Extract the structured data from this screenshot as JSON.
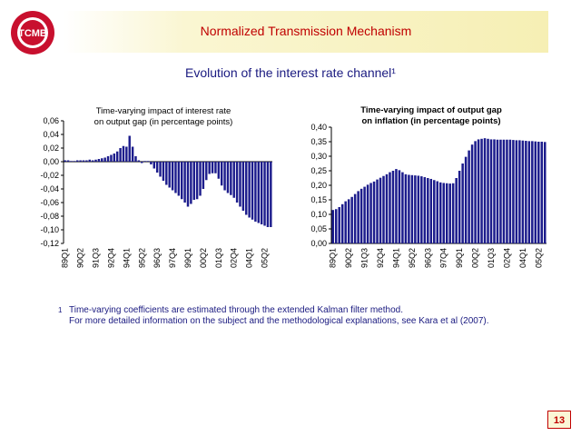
{
  "header": {
    "title": "Normalized Transmission Mechanism",
    "logo_text": "TCMB"
  },
  "subtitle": "Evolution of the interest rate channel¹",
  "footnote": {
    "mark": "1",
    "line1": "Time-varying coefficients are estimated through the extended Kalman filter method.",
    "line2": "For more detailed information on the subject and the methodological explanations, see Kara et al (2007)."
  },
  "page_number": "13",
  "colors": {
    "bar": "#1c1c8c",
    "title": "#c00000",
    "text": "#1a1a80"
  },
  "chart_data": [
    {
      "type": "bar",
      "title_line1": "Time-varying impact of interest rate",
      "title_line2": "on output gap (in percentage points)",
      "ylim": [
        -0.12,
        0.06
      ],
      "yticks": [
        "0,06",
        "0,04",
        "0,02",
        "0,00",
        "-0,02",
        "-0,04",
        "-0,06",
        "-0,08",
        "-0,10",
        "-0,12"
      ],
      "xticks": [
        "89Q1",
        "90Q2",
        "91Q3",
        "92Q4",
        "94Q1",
        "95Q2",
        "96Q3",
        "97Q4",
        "99Q1",
        "00Q2",
        "01Q3",
        "02Q4",
        "04Q1",
        "05Q2"
      ],
      "grid": false,
      "values": [
        0.002,
        0.002,
        0.001,
        0.001,
        0.002,
        0.002,
        0.002,
        0.002,
        0.003,
        0.002,
        0.003,
        0.004,
        0.005,
        0.006,
        0.008,
        0.01,
        0.012,
        0.015,
        0.02,
        0.023,
        0.022,
        0.038,
        0.022,
        0.008,
        0.002,
        -0.002,
        0.001,
        0.001,
        -0.004,
        -0.01,
        -0.016,
        -0.022,
        -0.028,
        -0.034,
        -0.038,
        -0.042,
        -0.046,
        -0.05,
        -0.055,
        -0.06,
        -0.066,
        -0.062,
        -0.056,
        -0.055,
        -0.05,
        -0.04,
        -0.027,
        -0.018,
        -0.017,
        -0.017,
        -0.025,
        -0.035,
        -0.042,
        -0.046,
        -0.049,
        -0.053,
        -0.06,
        -0.066,
        -0.072,
        -0.078,
        -0.082,
        -0.085,
        -0.088,
        -0.09,
        -0.092,
        -0.094,
        -0.096,
        -0.096
      ]
    },
    {
      "type": "bar",
      "title_line1": "Time-varying impact of output gap",
      "title_line2": "on inflation (in percentage points)",
      "ylim": [
        0.0,
        0.4
      ],
      "yticks": [
        "0,40",
        "0,35",
        "0,30",
        "0,25",
        "0,20",
        "0,15",
        "0,10",
        "0,05",
        "0,00"
      ],
      "xticks": [
        "89Q1",
        "90Q2",
        "91Q3",
        "92Q4",
        "94Q1",
        "95Q2",
        "96Q3",
        "97Q4",
        "99Q1",
        "00Q2",
        "01Q3",
        "02Q4",
        "04Q1",
        "05Q2"
      ],
      "grid": false,
      "values": [
        0.115,
        0.118,
        0.125,
        0.135,
        0.145,
        0.152,
        0.16,
        0.17,
        0.18,
        0.188,
        0.195,
        0.202,
        0.208,
        0.213,
        0.22,
        0.226,
        0.232,
        0.238,
        0.245,
        0.25,
        0.256,
        0.252,
        0.245,
        0.238,
        0.236,
        0.235,
        0.234,
        0.233,
        0.231,
        0.228,
        0.225,
        0.222,
        0.218,
        0.214,
        0.21,
        0.208,
        0.207,
        0.206,
        0.207,
        0.225,
        0.25,
        0.275,
        0.298,
        0.32,
        0.34,
        0.352,
        0.358,
        0.36,
        0.362,
        0.36,
        0.358,
        0.358,
        0.357,
        0.357,
        0.357,
        0.357,
        0.357,
        0.356,
        0.355,
        0.355,
        0.354,
        0.353,
        0.352,
        0.352,
        0.351,
        0.35,
        0.35,
        0.349
      ]
    }
  ]
}
